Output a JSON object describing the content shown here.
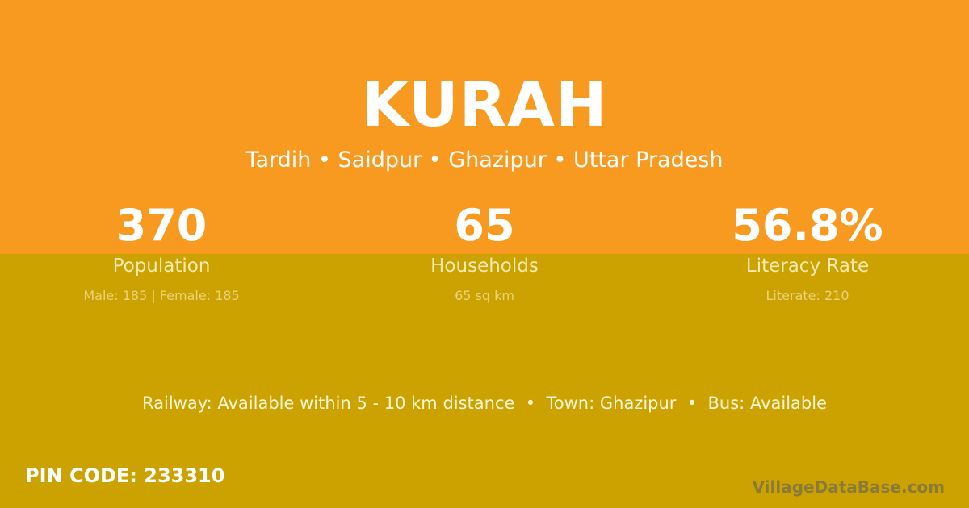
{
  "village": {
    "name": "KURAH",
    "location": "Tardih • Saidpur • Ghazipur • Uttar Pradesh"
  },
  "stats": [
    {
      "value": "370",
      "label": "Population",
      "detail": "Male: 185 | Female: 185"
    },
    {
      "value": "65",
      "label": "Households",
      "detail": "65 sq km"
    },
    {
      "value": "56.8%",
      "label": "Literacy Rate",
      "detail": "Literate: 210"
    }
  ],
  "facilities": "Railway: Available within 5 - 10 km distance  •  Town: Ghazipur  •  Bus: Available",
  "pin_code": "PIN CODE: 233310",
  "brand": "VillageDataBase.com",
  "colors": {
    "top": "#f89a20",
    "bottom": "#cba200"
  }
}
